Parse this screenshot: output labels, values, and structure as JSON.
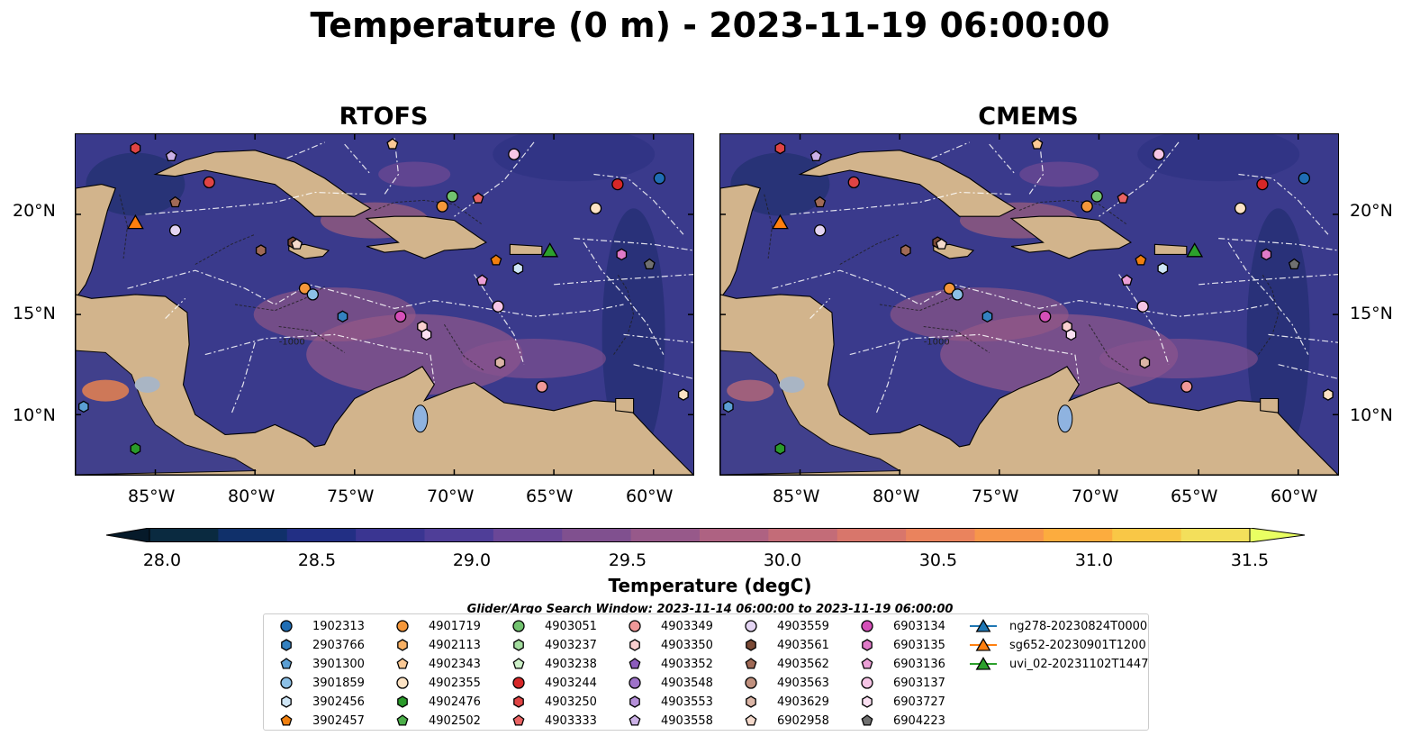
{
  "title": "Temperature (0 m) - 2023-11-19 06:00:00",
  "panels": [
    {
      "title": "RTOFS"
    },
    {
      "title": "CMEMS"
    }
  ],
  "map": {
    "lon_range": [
      -89,
      -58
    ],
    "lat_range": [
      7,
      24
    ],
    "lat_ticks": [
      "20°N",
      "15°N",
      "10°N"
    ],
    "lon_ticks": [
      "85°W",
      "80°W",
      "75°W",
      "70°W",
      "65°W",
      "60°W"
    ],
    "ocean_color": "#3a3a8c",
    "land_color": "#d2b48c",
    "depth_contour_label": "-1000"
  },
  "colorbar": {
    "label": "Temperature (degC)",
    "ticks": [
      "28.0",
      "28.5",
      "29.0",
      "29.5",
      "30.0",
      "30.5",
      "31.0",
      "31.5"
    ],
    "range": [
      28.0,
      31.5
    ],
    "colors": [
      "#0a2a40",
      "#10306a",
      "#222f84",
      "#3a3591",
      "#4f3e98",
      "#6a4797",
      "#80508f",
      "#97598a",
      "#ae6282",
      "#c36c78",
      "#d8766b",
      "#ea835d",
      "#f7964b",
      "#fcac3e",
      "#f9c746",
      "#f3df5b"
    ],
    "extend_colors": [
      "#061a2a",
      "#e9ff62"
    ]
  },
  "search_window": "Glider/Argo Search Window: 2023-11-14 06:00:00 to 2023-11-19 06:00:00",
  "legend": [
    {
      "label": "1902313",
      "marker": "circle",
      "color": "#1f6db4"
    },
    {
      "label": "2903766",
      "marker": "hexagon",
      "color": "#3481c0"
    },
    {
      "label": "3901300",
      "marker": "pentagon",
      "color": "#5b9fd4"
    },
    {
      "label": "3901859",
      "marker": "circle",
      "color": "#8cc0e6"
    },
    {
      "label": "3902456",
      "marker": "hexagon",
      "color": "#cfe6f6"
    },
    {
      "label": "3902457",
      "marker": "pentagon",
      "color": "#f07f0e"
    },
    {
      "label": "4901719",
      "marker": "circle",
      "color": "#f5973a"
    },
    {
      "label": "4902113",
      "marker": "hexagon",
      "color": "#f8b063"
    },
    {
      "label": "4902343",
      "marker": "pentagon",
      "color": "#fbc995"
    },
    {
      "label": "4902355",
      "marker": "circle",
      "color": "#fde3c4"
    },
    {
      "label": "4902476",
      "marker": "hexagon",
      "color": "#2a9a2a"
    },
    {
      "label": "4902502",
      "marker": "pentagon",
      "color": "#4caf4a"
    },
    {
      "label": "4903051",
      "marker": "circle",
      "color": "#72c26f"
    },
    {
      "label": "4903237",
      "marker": "hexagon",
      "color": "#a3dc9e"
    },
    {
      "label": "4903238",
      "marker": "pentagon",
      "color": "#cdf0c8"
    },
    {
      "label": "4903244",
      "marker": "circle",
      "color": "#d62728"
    },
    {
      "label": "4903250",
      "marker": "hexagon",
      "color": "#e04444"
    },
    {
      "label": "4903333",
      "marker": "pentagon",
      "color": "#ea6464"
    },
    {
      "label": "4903349",
      "marker": "circle",
      "color": "#f09898"
    },
    {
      "label": "4903350",
      "marker": "hexagon",
      "color": "#f9cfcf"
    },
    {
      "label": "4903352",
      "marker": "pentagon",
      "color": "#8c5cbc"
    },
    {
      "label": "4903548",
      "marker": "circle",
      "color": "#9e72c9"
    },
    {
      "label": "4903553",
      "marker": "hexagon",
      "color": "#b58fd9"
    },
    {
      "label": "4903558",
      "marker": "pentagon",
      "color": "#cbb1e6"
    },
    {
      "label": "4903559",
      "marker": "circle",
      "color": "#e3d4f2"
    },
    {
      "label": "4903561",
      "marker": "hexagon",
      "color": "#7b4a36"
    },
    {
      "label": "4903562",
      "marker": "pentagon",
      "color": "#a06a56"
    },
    {
      "label": "4903563",
      "marker": "circle",
      "color": "#c0907e"
    },
    {
      "label": "4903629",
      "marker": "hexagon",
      "color": "#dbb5a6"
    },
    {
      "label": "6902958",
      "marker": "pentagon",
      "color": "#f4d9cb"
    },
    {
      "label": "6903134",
      "marker": "circle",
      "color": "#d54fb8"
    },
    {
      "label": "6903135",
      "marker": "hexagon",
      "color": "#e07ac8"
    },
    {
      "label": "6903136",
      "marker": "pentagon",
      "color": "#eb9fd6"
    },
    {
      "label": "6903137",
      "marker": "circle",
      "color": "#f6c5e6"
    },
    {
      "label": "6903727",
      "marker": "hexagon",
      "color": "#fbe0f2"
    },
    {
      "label": "6904223",
      "marker": "pentagon",
      "color": "#707070"
    },
    {
      "label": "ng278-20230824T0000",
      "marker": "triangle-line",
      "color": "#1f77b4"
    },
    {
      "label": "sg652-20230901T1200",
      "marker": "triangle-line",
      "color": "#ff7f0e"
    },
    {
      "label": "uvi_02-20231102T1447",
      "marker": "triangle-line",
      "color": "#2ca02c"
    }
  ],
  "floats": [
    {
      "lon": -82.3,
      "lat": 21.6,
      "color": "#e04444",
      "marker": "circle"
    },
    {
      "lon": -79.7,
      "lat": 18.2,
      "color": "#a06a56",
      "marker": "hexagon"
    },
    {
      "lon": -78.1,
      "lat": 18.6,
      "color": "#7b4a36",
      "marker": "hexagon"
    },
    {
      "lon": -77.5,
      "lat": 16.3,
      "color": "#f5973a",
      "marker": "circle"
    },
    {
      "lon": -77.1,
      "lat": 16.0,
      "color": "#8cc0e6",
      "marker": "circle"
    },
    {
      "lon": -75.6,
      "lat": 14.9,
      "color": "#3481c0",
      "marker": "hexagon"
    },
    {
      "lon": -72.7,
      "lat": 14.9,
      "color": "#d54fb8",
      "marker": "circle"
    },
    {
      "lon": -71.6,
      "lat": 14.4,
      "color": "#f9cfcf",
      "marker": "hexagon"
    },
    {
      "lon": -71.4,
      "lat": 14.0,
      "color": "#fbe0f2",
      "marker": "hexagon"
    },
    {
      "lon": -70.1,
      "lat": 20.9,
      "color": "#72c26f",
      "marker": "circle"
    },
    {
      "lon": -70.6,
      "lat": 20.4,
      "color": "#f5973a",
      "marker": "circle"
    },
    {
      "lon": -68.8,
      "lat": 20.8,
      "color": "#ea6464",
      "marker": "pentagon"
    },
    {
      "lon": -67.9,
      "lat": 17.7,
      "color": "#f07f0e",
      "marker": "pentagon"
    },
    {
      "lon": -66.8,
      "lat": 17.3,
      "color": "#cfe6f6",
      "marker": "hexagon"
    },
    {
      "lon": -68.6,
      "lat": 16.7,
      "color": "#eb9fd6",
      "marker": "pentagon"
    },
    {
      "lon": -67.8,
      "lat": 15.4,
      "color": "#f6c5e6",
      "marker": "circle"
    },
    {
      "lon": -67.7,
      "lat": 12.6,
      "color": "#dbb5a6",
      "marker": "hexagon"
    },
    {
      "lon": -65.6,
      "lat": 11.4,
      "color": "#f09898",
      "marker": "circle"
    },
    {
      "lon": -62.9,
      "lat": 20.3,
      "color": "#fde3c4",
      "marker": "circle"
    },
    {
      "lon": -61.8,
      "lat": 21.5,
      "color": "#d62728",
      "marker": "circle"
    },
    {
      "lon": -59.7,
      "lat": 21.8,
      "color": "#1f6db4",
      "marker": "circle"
    },
    {
      "lon": -61.6,
      "lat": 18.0,
      "color": "#e07ac8",
      "marker": "hexagon"
    },
    {
      "lon": -60.2,
      "lat": 17.5,
      "color": "#707070",
      "marker": "pentagon"
    },
    {
      "lon": -84.0,
      "lat": 20.6,
      "color": "#a06a56",
      "marker": "pentagon"
    },
    {
      "lon": -84.2,
      "lat": 22.9,
      "color": "#cbb1e6",
      "marker": "pentagon"
    },
    {
      "lon": -86.0,
      "lat": 23.3,
      "color": "#e04444",
      "marker": "hexagon"
    },
    {
      "lon": -84.0,
      "lat": 19.2,
      "color": "#e3d4f2",
      "marker": "circle"
    },
    {
      "lon": -77.9,
      "lat": 18.5,
      "color": "#f4d9cb",
      "marker": "pentagon"
    },
    {
      "lon": -73.1,
      "lat": 23.5,
      "color": "#fbc995",
      "marker": "pentagon"
    },
    {
      "lon": -67.0,
      "lat": 23.0,
      "color": "#f6c5e6",
      "marker": "circle"
    },
    {
      "lon": -88.6,
      "lat": 10.4,
      "color": "#5b9fd4",
      "marker": "hexagon"
    },
    {
      "lon": -86.0,
      "lat": 8.3,
      "color": "#2a9a2a",
      "marker": "hexagon"
    },
    {
      "lon": -58.5,
      "lat": 11.0,
      "color": "#fde3c4",
      "marker": "hexagon"
    }
  ],
  "gliders": [
    {
      "lon": -86.0,
      "lat": 19.6,
      "color": "#ff7f0e"
    },
    {
      "lon": -65.2,
      "lat": 18.2,
      "color": "#2ca02c"
    }
  ]
}
